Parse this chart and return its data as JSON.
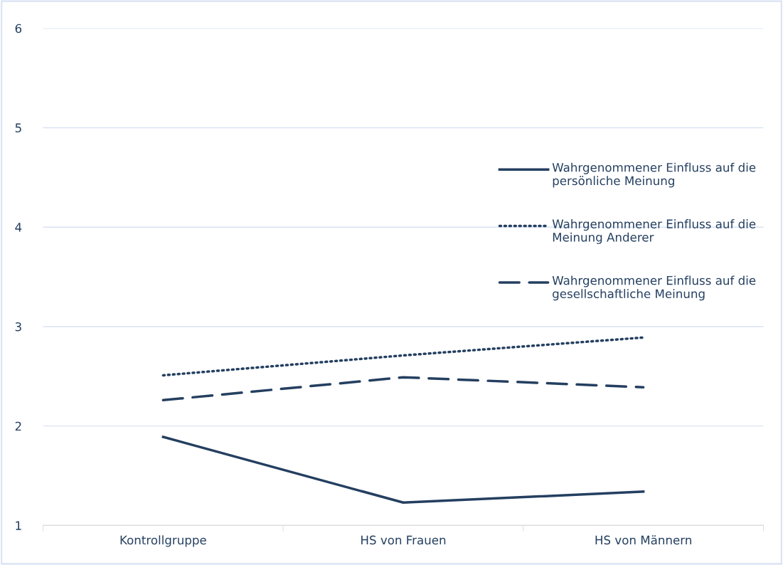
{
  "chart_data": {
    "type": "line",
    "categories": [
      "Kontrollgruppe",
      "HS von Frauen",
      "HS von Männern"
    ],
    "series": [
      {
        "name": "Wahrgenommener Einfluss auf die persönliche Meinung",
        "color": "#243f60",
        "line_style": "solid",
        "values": [
          1.89,
          1.23,
          1.34
        ]
      },
      {
        "name": "Wahrgenommener Einfluss auf die Meinung Anderer",
        "color": "#243f60",
        "line_style": "dotted",
        "values": [
          2.51,
          2.71,
          2.89
        ]
      },
      {
        "name": "Wahrgenommener Einfluss auf die gesellschaftliche Meinung",
        "color": "#243f60",
        "line_style": "dashed",
        "values": [
          2.26,
          2.49,
          2.39
        ]
      }
    ],
    "ylim": [
      1,
      6
    ],
    "yticks": [
      1,
      2,
      3,
      4,
      5,
      6
    ],
    "grid": "y",
    "legend": "right",
    "marker": "none"
  }
}
